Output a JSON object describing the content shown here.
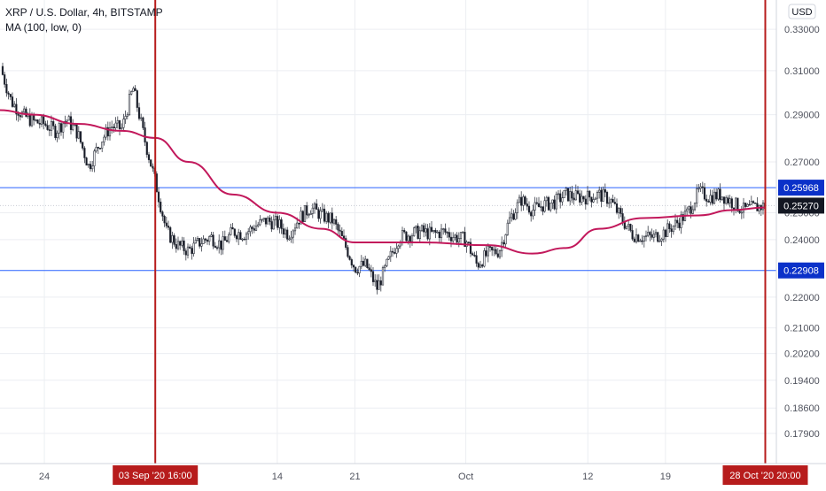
{
  "header": {
    "symbol_line": "XRP / U.S. Dollar, 4h, BITSTAMP",
    "indicator_line": "MA (100, low, 0)",
    "currency": "USD"
  },
  "colors": {
    "candle_up": "#2a2e39",
    "candle_down": "#131722",
    "ma_line": "#c2185b",
    "hline": "#2962ff",
    "vline": "#b71c1c",
    "label_blue": "#0b31c9",
    "label_red": "#b71c1c",
    "grid": "#eceef2",
    "axis_text": "#50535e"
  },
  "chart_data": {
    "type": "candlestick",
    "title": "XRP / U.S. Dollar, 4h, BITSTAMP",
    "indicator": "MA (100, low, 0)",
    "x_axis": {
      "tick_labels": [
        "24",
        "14",
        "21",
        "Oct",
        "12",
        "19"
      ],
      "range": [
        "2020-08-20",
        "2020-10-29"
      ]
    },
    "y_axis": {
      "scale": "log",
      "range": [
        0.171,
        0.345
      ],
      "tick_labels": [
        "0.33000",
        "0.31000",
        "0.29000",
        "0.27000",
        "0.25000",
        "0.24000",
        "0.22000",
        "0.21000",
        "0.20200",
        "0.19400",
        "0.18600",
        "0.17900"
      ]
    },
    "grid": true,
    "price_points": [
      {
        "t": "2020-08-20",
        "v": 0.312
      },
      {
        "t": "2020-08-21",
        "v": 0.296
      },
      {
        "t": "2020-08-22",
        "v": 0.29
      },
      {
        "t": "2020-08-23",
        "v": 0.287
      },
      {
        "t": "2020-08-24",
        "v": 0.286
      },
      {
        "t": "2020-08-25",
        "v": 0.283
      },
      {
        "t": "2020-08-26",
        "v": 0.288
      },
      {
        "t": "2020-08-27",
        "v": 0.282
      },
      {
        "t": "2020-08-28",
        "v": 0.268
      },
      {
        "t": "2020-08-29",
        "v": 0.278
      },
      {
        "t": "2020-08-30",
        "v": 0.285
      },
      {
        "t": "2020-08-31",
        "v": 0.284
      },
      {
        "t": "2020-09-01",
        "v": 0.302
      },
      {
        "t": "2020-09-02",
        "v": 0.28
      },
      {
        "t": "2020-09-03",
        "v": 0.262
      },
      {
        "t": "2020-09-04",
        "v": 0.243
      },
      {
        "t": "2020-09-05",
        "v": 0.238
      },
      {
        "t": "2020-09-06",
        "v": 0.236
      },
      {
        "t": "2020-09-07",
        "v": 0.239
      },
      {
        "t": "2020-09-08",
        "v": 0.241
      },
      {
        "t": "2020-09-09",
        "v": 0.238
      },
      {
        "t": "2020-09-10",
        "v": 0.243
      },
      {
        "t": "2020-09-11",
        "v": 0.242
      },
      {
        "t": "2020-09-12",
        "v": 0.245
      },
      {
        "t": "2020-09-13",
        "v": 0.247
      },
      {
        "t": "2020-09-14",
        "v": 0.246
      },
      {
        "t": "2020-09-15",
        "v": 0.242
      },
      {
        "t": "2020-09-16",
        "v": 0.248
      },
      {
        "t": "2020-09-17",
        "v": 0.252
      },
      {
        "t": "2020-09-18",
        "v": 0.249
      },
      {
        "t": "2020-09-19",
        "v": 0.247
      },
      {
        "t": "2020-09-20",
        "v": 0.239
      },
      {
        "t": "2020-09-21",
        "v": 0.23
      },
      {
        "t": "2020-09-22",
        "v": 0.231
      },
      {
        "t": "2020-09-23",
        "v": 0.223
      },
      {
        "t": "2020-09-24",
        "v": 0.232
      },
      {
        "t": "2020-09-25",
        "v": 0.241
      },
      {
        "t": "2020-09-26",
        "v": 0.242
      },
      {
        "t": "2020-09-27",
        "v": 0.243
      },
      {
        "t": "2020-09-28",
        "v": 0.242
      },
      {
        "t": "2020-09-29",
        "v": 0.243
      },
      {
        "t": "2020-09-30",
        "v": 0.241
      },
      {
        "t": "2020-10-01",
        "v": 0.24
      },
      {
        "t": "2020-10-02",
        "v": 0.231
      },
      {
        "t": "2020-10-03",
        "v": 0.235
      },
      {
        "t": "2020-10-04",
        "v": 0.236
      },
      {
        "t": "2020-10-05",
        "v": 0.248
      },
      {
        "t": "2020-10-06",
        "v": 0.255
      },
      {
        "t": "2020-10-07",
        "v": 0.251
      },
      {
        "t": "2020-10-08",
        "v": 0.253
      },
      {
        "t": "2020-10-09",
        "v": 0.254
      },
      {
        "t": "2020-10-10",
        "v": 0.257
      },
      {
        "t": "2020-10-11",
        "v": 0.256
      },
      {
        "t": "2020-10-12",
        "v": 0.256
      },
      {
        "t": "2020-10-13",
        "v": 0.257
      },
      {
        "t": "2020-10-14",
        "v": 0.255
      },
      {
        "t": "2020-10-15",
        "v": 0.248
      },
      {
        "t": "2020-10-16",
        "v": 0.242
      },
      {
        "t": "2020-10-17",
        "v": 0.241
      },
      {
        "t": "2020-10-18",
        "v": 0.241
      },
      {
        "t": "2020-10-19",
        "v": 0.243
      },
      {
        "t": "2020-10-20",
        "v": 0.246
      },
      {
        "t": "2020-10-21",
        "v": 0.25
      },
      {
        "t": "2020-10-22",
        "v": 0.258
      },
      {
        "t": "2020-10-23",
        "v": 0.256
      },
      {
        "t": "2020-10-24",
        "v": 0.257
      },
      {
        "t": "2020-10-25",
        "v": 0.254
      },
      {
        "t": "2020-10-26",
        "v": 0.251
      },
      {
        "t": "2020-10-27",
        "v": 0.252
      },
      {
        "t": "2020-10-28",
        "v": 0.2527
      }
    ],
    "ma_points": [
      {
        "t": "2020-08-20",
        "v": 0.292
      },
      {
        "t": "2020-08-23",
        "v": 0.29
      },
      {
        "t": "2020-08-27",
        "v": 0.286
      },
      {
        "t": "2020-08-31",
        "v": 0.283
      },
      {
        "t": "2020-09-03",
        "v": 0.28
      },
      {
        "t": "2020-09-06",
        "v": 0.27
      },
      {
        "t": "2020-09-10",
        "v": 0.257
      },
      {
        "t": "2020-09-14",
        "v": 0.25
      },
      {
        "t": "2020-09-18",
        "v": 0.244
      },
      {
        "t": "2020-09-21",
        "v": 0.239
      },
      {
        "t": "2020-09-27",
        "v": 0.239
      },
      {
        "t": "2020-10-03",
        "v": 0.238
      },
      {
        "t": "2020-10-07",
        "v": 0.235
      },
      {
        "t": "2020-10-10",
        "v": 0.237
      },
      {
        "t": "2020-10-13",
        "v": 0.244
      },
      {
        "t": "2020-10-17",
        "v": 0.248
      },
      {
        "t": "2020-10-22",
        "v": 0.249
      },
      {
        "t": "2020-10-25",
        "v": 0.251
      },
      {
        "t": "2020-10-28",
        "v": 0.252
      }
    ],
    "horizontal_lines": [
      {
        "value": 0.25968,
        "label": "0.25968"
      },
      {
        "value": 0.22908,
        "label": "0.22908"
      }
    ],
    "last_price": {
      "value": 0.2527,
      "label": "0.25270"
    },
    "vertical_markers": [
      {
        "t": "2020-09-03",
        "label": "03 Sep '20   16:00"
      },
      {
        "t": "2020-10-28",
        "label": "28 Oct '20   20:00"
      }
    ]
  }
}
